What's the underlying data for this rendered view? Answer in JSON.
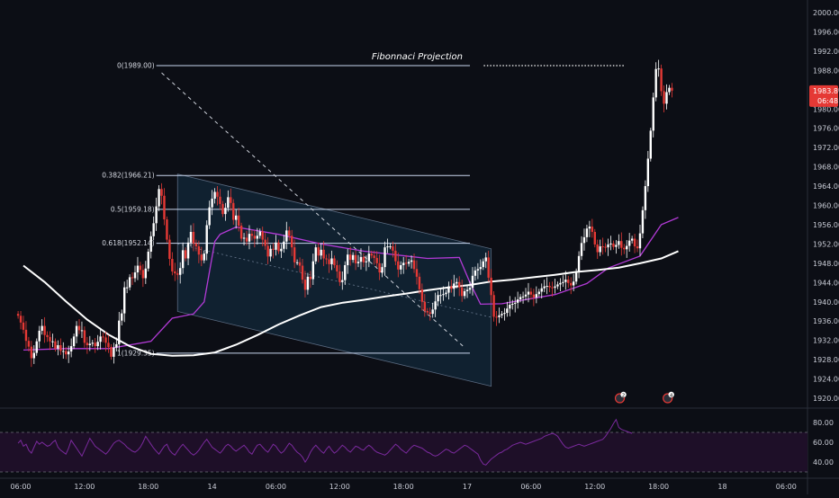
{
  "chart_data": {
    "type": "candlestick",
    "title": "Fibonnaci Projection",
    "colors": {
      "background": "#0c0e15",
      "up": "#ffffff",
      "down": "#e53935",
      "ma_short": "#b23ad6",
      "ma_long": "#ffffff",
      "fib_lines": "#c9d6ee",
      "channel_fill": "#12283a",
      "price_label_bg": "#e53935",
      "rsi": "#7b2a9e",
      "rsi_band": "#1e0f28"
    },
    "price_axis": {
      "ylim": [
        1919,
        2002
      ],
      "ticks": [
        "2000.00",
        "1996.00",
        "1992.00",
        "1988.00",
        "1984.00",
        "1980.00",
        "1976.00",
        "1972.00",
        "1968.00",
        "1964.00",
        "1960.00",
        "1956.00",
        "1952.00",
        "1948.00",
        "1944.00",
        "1940.00",
        "1936.00",
        "1932.00",
        "1928.00",
        "1924.00",
        "1920.00"
      ]
    },
    "time_axis": {
      "labels": [
        "06:00",
        "12:00",
        "18:00",
        "14",
        "06:00",
        "12:00",
        "18:00",
        "17",
        "06:00",
        "12:00",
        "18:00",
        "18",
        "06:00"
      ],
      "positions": [
        0,
        6,
        12,
        18,
        24,
        30,
        36,
        42,
        48,
        54,
        60,
        66,
        72
      ]
    },
    "last_price": {
      "value": "1983.81",
      "countdown": "06:48"
    },
    "fibonacci": [
      {
        "label": "0(1989.00)",
        "price": 1989.0
      },
      {
        "label": "0.382(1966.21)",
        "price": 1966.21
      },
      {
        "label": "0.5(1959.18)",
        "price": 1959.18
      },
      {
        "label": "0.618(1952.14)",
        "price": 1952.14
      },
      {
        "label": "1(1929.35)",
        "price": 1929.35
      }
    ],
    "fib_x_range": [
      12.5,
      42
    ],
    "projection_dotted": {
      "x0": 43.3,
      "x1": 56.5,
      "price": 1989.0
    },
    "projection_diagonal": {
      "x0": 13,
      "p0": 1987.5,
      "x1": 41.5,
      "p1": 1930.5
    },
    "channel": {
      "upper": {
        "x0": 14.5,
        "p0": 1966.5,
        "x1": 44,
        "p1": 1951.0
      },
      "lower": {
        "x0": 14.5,
        "p0": 1938.0,
        "x1": 44,
        "p1": 1922.5
      },
      "midline": {
        "x0": 14.5,
        "p0": 1952.0,
        "x1": 44,
        "p1": 1936.8
      }
    },
    "candles": {
      "start_x": -0.5,
      "step": 0.25,
      "closes": [
        1937.1,
        1935.7,
        1934.2,
        1931.9,
        1930.7,
        1928.3,
        1929.4,
        1931.8,
        1934.0,
        1935.0,
        1933.1,
        1932.7,
        1931.8,
        1931.8,
        1930.3,
        1931.0,
        1929.8,
        1929.8,
        1929.1,
        1929.7,
        1930.8,
        1932.8,
        1935.0,
        1934.1,
        1934.1,
        1931.5,
        1931.0,
        1931.3,
        1931.5,
        1930.8,
        1931.7,
        1932.8,
        1932.6,
        1931.5,
        1930.6,
        1928.6,
        1930.5,
        1931.2,
        1936.1,
        1937.6,
        1943.0,
        1943.0,
        1945.1,
        1944.9,
        1946.1,
        1947.5,
        1946.6,
        1944.9,
        1946.9,
        1950.4,
        1953.6,
        1956.3,
        1959.8,
        1963.4,
        1962.0,
        1957.1,
        1952.9,
        1948.9,
        1946.3,
        1945.9,
        1945.6,
        1947.0,
        1950.7,
        1949.0,
        1952.3,
        1954.5,
        1952.1,
        1951.5,
        1949.8,
        1948.6,
        1950.0,
        1955.9,
        1959.6,
        1961.4,
        1962.8,
        1961.8,
        1960.3,
        1958.2,
        1959.5,
        1961.7,
        1960.5,
        1957.0,
        1957.9,
        1955.8,
        1953.1,
        1953.3,
        1952.5,
        1954.1,
        1953.7,
        1953.1,
        1953.7,
        1954.6,
        1952.9,
        1951.6,
        1949.4,
        1951.0,
        1950.8,
        1952.3,
        1950.5,
        1951.0,
        1952.5,
        1954.8,
        1953.7,
        1951.3,
        1948.2,
        1948.2,
        1947.5,
        1944.6,
        1942.5,
        1945.2,
        1944.7,
        1948.4,
        1951.3,
        1949.6,
        1950.8,
        1949.0,
        1948.8,
        1947.8,
        1949.0,
        1947.6,
        1946.3,
        1944.1,
        1944.5,
        1947.6,
        1949.8,
        1948.7,
        1949.7,
        1948.0,
        1948.3,
        1949.3,
        1948.2,
        1948.4,
        1950.0,
        1949.6,
        1949.1,
        1948.0,
        1946.1,
        1947.2,
        1951.3,
        1951.5,
        1951.5,
        1950.6,
        1948.4,
        1946.7,
        1947.6,
        1948.1,
        1947.9,
        1948.3,
        1948.6,
        1946.8,
        1945.2,
        1942.6,
        1940.0,
        1938.1,
        1937.8,
        1937.5,
        1938.4,
        1940.1,
        1941.4,
        1941.4,
        1941.6,
        1941.9,
        1943.2,
        1942.7,
        1943.8,
        1944.1,
        1943.0,
        1941.2,
        1942.2,
        1942.5,
        1942.9,
        1945.4,
        1946.5,
        1946.8,
        1947.2,
        1948.4,
        1949.2,
        1945.0,
        1941.4,
        1936.9,
        1936.8,
        1937.2,
        1937.5,
        1937.7,
        1938.6,
        1939.4,
        1939.6,
        1939.8,
        1940.5,
        1941.0,
        1941.1,
        1941.5,
        1942.1,
        1941.5,
        1940.9,
        1941.6,
        1942.1,
        1942.8,
        1943.2,
        1943.3,
        1943.0,
        1942.9,
        1943.2,
        1943.6,
        1943.9,
        1944.1,
        1944.6,
        1943.9,
        1943.4,
        1944.2,
        1946.3,
        1949.5,
        1952.2,
        1953.4,
        1955.2,
        1955.6,
        1954.5,
        1951.9,
        1950.3,
        1951.5,
        1951.4,
        1951.3,
        1951.9,
        1952.1,
        1951.4,
        1951.8,
        1952.6,
        1951.2,
        1950.9,
        1951.6,
        1952.7,
        1953.1,
        1951.5,
        1951.1,
        1954.2,
        1959.0,
        1964.0,
        1969.7,
        1975.5,
        1982.4,
        1988.3,
        1988.4,
        1983.7,
        1981.1,
        1983.5,
        1984.4,
        1983.8
      ]
    },
    "moving_averages": {
      "short": {
        "x": [
          0,
          4,
          8,
          12,
          14,
          16,
          17,
          18,
          18.5,
          20,
          24,
          28,
          32,
          36,
          38,
          41,
          42,
          43,
          45,
          50,
          53,
          55,
          58,
          60,
          61.6
        ],
        "price": [
          1930.0,
          1930.3,
          1930.3,
          1931.8,
          1936.6,
          1937.5,
          1940.0,
          1952.5,
          1954.0,
          1955.5,
          1954.0,
          1952.0,
          1950.5,
          1949.5,
          1949.0,
          1949.2,
          1944.0,
          1939.5,
          1939.6,
          1941.5,
          1943.8,
          1947.0,
          1949.5,
          1956.0,
          1957.5
        ]
      },
      "long": {
        "x": [
          0,
          2,
          4,
          6,
          8,
          10,
          12,
          14,
          16,
          18,
          20,
          22,
          24,
          26,
          28,
          30,
          32,
          34,
          36,
          38,
          40,
          42,
          44,
          46,
          48,
          50,
          52,
          54,
          56,
          58,
          60,
          61.6
        ],
        "price": [
          1947.5,
          1944.1,
          1940.1,
          1936.3,
          1933.2,
          1930.8,
          1929.2,
          1928.8,
          1928.9,
          1929.5,
          1931.1,
          1933.1,
          1935.3,
          1937.2,
          1938.9,
          1939.8,
          1940.4,
          1941.1,
          1941.7,
          1942.4,
          1943.0,
          1943.5,
          1944.2,
          1944.6,
          1945.1,
          1945.6,
          1946.2,
          1946.6,
          1947.1,
          1948.0,
          1949.0,
          1950.5
        ]
      }
    },
    "rsi": {
      "ticks": [
        "80.00",
        "60.00",
        "40.00"
      ],
      "ylim": [
        30,
        90
      ],
      "band": [
        30,
        70
      ],
      "values": [
        59,
        62,
        56,
        58,
        52,
        49,
        55,
        61,
        58,
        60,
        58,
        56,
        57,
        60,
        62,
        55,
        52,
        50,
        48,
        54,
        62,
        58,
        54,
        50,
        46,
        52,
        58,
        64,
        60,
        56,
        54,
        52,
        50,
        48,
        51,
        55,
        59,
        61,
        62,
        60,
        58,
        55,
        53,
        51,
        50,
        52,
        55,
        60,
        66,
        62,
        58,
        54,
        51,
        48,
        52,
        56,
        58,
        52,
        49,
        47,
        51,
        55,
        58,
        55,
        52,
        49,
        47,
        49,
        52,
        56,
        60,
        63,
        59,
        55,
        53,
        51,
        49,
        52,
        56,
        58,
        56,
        53,
        51,
        53,
        55,
        57,
        54,
        50,
        48,
        53,
        57,
        58,
        55,
        52,
        50,
        54,
        58,
        56,
        52,
        49,
        51,
        55,
        59,
        57,
        53,
        50,
        48,
        45,
        40,
        44,
        50,
        54,
        57,
        54,
        51,
        49,
        53,
        56,
        52,
        49,
        51,
        54,
        57,
        55,
        52,
        50,
        53,
        56,
        55,
        53,
        52,
        55,
        57,
        55,
        52,
        50,
        49,
        48,
        47,
        49,
        52,
        55,
        58,
        56,
        53,
        51,
        49,
        52,
        55,
        57,
        56,
        55,
        54,
        52,
        50,
        49,
        47,
        46,
        47,
        49,
        51,
        53,
        52,
        50,
        49,
        51,
        53,
        55,
        57,
        56,
        54,
        52,
        50,
        48,
        42,
        38,
        37,
        40,
        43,
        45,
        47,
        49,
        50,
        52,
        53,
        55,
        57,
        58,
        59,
        60,
        59,
        58,
        59,
        60,
        61,
        62,
        63,
        64,
        66,
        67,
        68,
        69,
        68,
        66,
        62,
        58,
        55,
        54,
        55,
        56,
        57,
        58,
        57,
        56,
        57,
        58,
        59,
        60,
        61,
        62,
        63,
        66,
        70,
        74,
        79,
        83,
        75,
        73,
        72,
        71,
        70,
        69
      ]
    },
    "event_badges": [
      {
        "label": "2",
        "x": 56.1
      },
      {
        "label": "4",
        "x": 60.6
      }
    ]
  }
}
